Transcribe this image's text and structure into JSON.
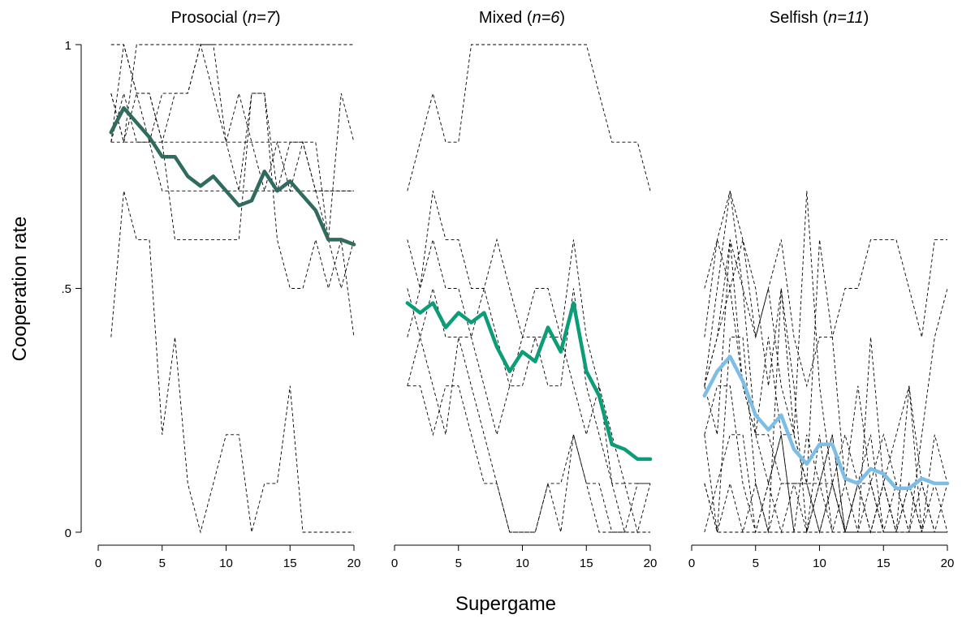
{
  "chart_data": {
    "type": "line",
    "xlabel": "Supergame",
    "ylabel": "Cooperation rate",
    "x": [
      1,
      2,
      3,
      4,
      5,
      6,
      7,
      8,
      9,
      10,
      11,
      12,
      13,
      14,
      15,
      16,
      17,
      18,
      19,
      20
    ],
    "xlim": [
      0,
      20
    ],
    "ylim": [
      0,
      1
    ],
    "xticks": [
      0,
      5,
      10,
      15,
      20
    ],
    "xtick_labels": [
      "0",
      "5",
      "10",
      "15",
      "20"
    ],
    "yticks": [
      0,
      0.5,
      1
    ],
    "ytick_labels": [
      "0",
      ".5",
      "1"
    ],
    "grid": false,
    "legend": "none",
    "panels": [
      {
        "title_main": "Prosocial (",
        "title_n": "n=7",
        "title_end": ")",
        "mean_color": "#2f6b5e",
        "mean": [
          0.82,
          0.87,
          0.84,
          0.81,
          0.77,
          0.77,
          0.73,
          0.71,
          0.73,
          0.7,
          0.67,
          0.68,
          0.74,
          0.7,
          0.72,
          0.69,
          0.66,
          0.6,
          0.6,
          0.59
        ],
        "individuals": [
          [
            1.0,
            1.0,
            0.9,
            0.9,
            0.8,
            0.9,
            0.9,
            1.0,
            1.0,
            0.8,
            0.7,
            0.9,
            0.9,
            0.7,
            0.8,
            0.8,
            0.8,
            0.6,
            0.9,
            0.8
          ],
          [
            0.9,
            0.8,
            0.8,
            0.8,
            0.8,
            0.8,
            0.8,
            0.8,
            0.8,
            0.8,
            0.8,
            0.8,
            0.8,
            0.8,
            0.8,
            0.8,
            0.7,
            0.7,
            0.7,
            0.7
          ],
          [
            0.8,
            0.8,
            1.0,
            1.0,
            1.0,
            1.0,
            1.0,
            1.0,
            1.0,
            1.0,
            1.0,
            1.0,
            1.0,
            1.0,
            1.0,
            1.0,
            1.0,
            1.0,
            1.0,
            1.0
          ],
          [
            0.8,
            1.0,
            0.9,
            0.9,
            0.8,
            0.6,
            0.6,
            0.6,
            0.6,
            0.6,
            0.6,
            0.9,
            0.9,
            0.6,
            0.5,
            0.5,
            0.6,
            0.5,
            0.6,
            0.4
          ],
          [
            0.4,
            0.7,
            0.6,
            0.6,
            0.2,
            0.4,
            0.1,
            0.0,
            0.1,
            0.2,
            0.2,
            0.0,
            0.1,
            0.1,
            0.3,
            0.0,
            0.0,
            0.0,
            0.0,
            0.0
          ],
          [
            0.8,
            0.9,
            0.8,
            0.8,
            0.9,
            0.9,
            0.9,
            1.0,
            0.9,
            0.8,
            0.9,
            0.8,
            0.7,
            0.8,
            0.7,
            0.8,
            0.7,
            0.6,
            0.5,
            0.6
          ],
          [
            0.9,
            0.8,
            0.9,
            0.8,
            0.7,
            0.7,
            0.7,
            0.7,
            0.7,
            0.7,
            0.7,
            0.7,
            0.7,
            0.7,
            0.7,
            0.7,
            0.7,
            0.7,
            0.7,
            0.7
          ]
        ]
      },
      {
        "title_main": "Mixed (",
        "title_n": "n=6",
        "title_end": ")",
        "mean_color": "#0c9d78",
        "mean": [
          0.47,
          0.45,
          0.47,
          0.42,
          0.45,
          0.43,
          0.45,
          0.38,
          0.33,
          0.37,
          0.35,
          0.42,
          0.37,
          0.47,
          0.33,
          0.28,
          0.18,
          0.17,
          0.15,
          0.15
        ],
        "individuals": [
          [
            0.7,
            0.8,
            0.9,
            0.8,
            0.8,
            1.0,
            1.0,
            1.0,
            1.0,
            1.0,
            1.0,
            1.0,
            1.0,
            1.0,
            1.0,
            0.9,
            0.8,
            0.8,
            0.8,
            0.7
          ],
          [
            0.6,
            0.5,
            0.7,
            0.6,
            0.6,
            0.5,
            0.5,
            0.6,
            0.5,
            0.4,
            0.5,
            0.5,
            0.4,
            0.6,
            0.4,
            0.3,
            0.2,
            0.1,
            0.1,
            0.1
          ],
          [
            0.5,
            0.4,
            0.5,
            0.4,
            0.4,
            0.4,
            0.3,
            0.2,
            0.3,
            0.3,
            0.4,
            0.3,
            0.3,
            0.5,
            0.3,
            0.2,
            0.1,
            0.1,
            0.0,
            0.1
          ],
          [
            0.4,
            0.5,
            0.6,
            0.5,
            0.5,
            0.4,
            0.5,
            0.4,
            0.3,
            0.4,
            0.4,
            0.4,
            0.4,
            0.3,
            0.2,
            0.3,
            0.1,
            0.0,
            0.0,
            0.0
          ],
          [
            0.3,
            0.3,
            0.2,
            0.3,
            0.3,
            0.2,
            0.1,
            0.1,
            0.0,
            0.0,
            0.0,
            0.1,
            0.1,
            0.2,
            0.1,
            0.0,
            0.0,
            0.0,
            0.0,
            0.0
          ],
          [
            0.3,
            0.4,
            0.3,
            0.2,
            0.4,
            0.3,
            0.2,
            0.1,
            0.0,
            0.0,
            0.0,
            0.1,
            0.0,
            0.2,
            0.1,
            0.1,
            0.0,
            0.0,
            0.1,
            0.1
          ]
        ]
      },
      {
        "title_main": "Selfish (",
        "title_n": "n=11",
        "title_end": ")",
        "mean_color": "#7dbde6",
        "mean": [
          0.28,
          0.33,
          0.36,
          0.31,
          0.24,
          0.21,
          0.24,
          0.17,
          0.14,
          0.18,
          0.18,
          0.11,
          0.1,
          0.13,
          0.12,
          0.09,
          0.09,
          0.11,
          0.1,
          0.1
        ],
        "individuals": [
          [
            0.4,
            0.6,
            0.7,
            0.5,
            0.4,
            0.5,
            0.6,
            0.4,
            0.3,
            0.4,
            0.4,
            0.5,
            0.5,
            0.6,
            0.6,
            0.6,
            0.5,
            0.4,
            0.6,
            0.6
          ],
          [
            0.3,
            0.5,
            0.7,
            0.6,
            0.5,
            0.3,
            0.5,
            0.2,
            0.1,
            0.6,
            0.4,
            0.1,
            0.3,
            0.1,
            0.2,
            0.1,
            0.0,
            0.2,
            0.4,
            0.5
          ],
          [
            0.3,
            0.4,
            0.5,
            0.6,
            0.4,
            0.5,
            0.3,
            0.2,
            0.7,
            0.3,
            0.1,
            0.2,
            0.1,
            0.0,
            0.1,
            0.0,
            0.3,
            0.1,
            0.0,
            0.0
          ],
          [
            0.3,
            0.2,
            0.6,
            0.5,
            0.2,
            0.4,
            0.2,
            0.0,
            0.2,
            0.1,
            0.2,
            0.0,
            0.1,
            0.2,
            0.0,
            0.1,
            0.0,
            0.0,
            0.1,
            0.0
          ],
          [
            0.2,
            0.0,
            0.4,
            0.4,
            0.1,
            0.0,
            0.5,
            0.3,
            0.0,
            0.2,
            0.0,
            0.1,
            0.0,
            0.4,
            0.1,
            0.2,
            0.3,
            0.0,
            0.2,
            0.1
          ],
          [
            0.0,
            0.1,
            0.2,
            0.2,
            0.0,
            0.1,
            0.0,
            0.1,
            0.1,
            0.0,
            0.1,
            0.0,
            0.0,
            0.0,
            0.1,
            0.0,
            0.0,
            0.0,
            0.0,
            0.0
          ],
          [
            0.1,
            0.0,
            0.1,
            0.0,
            0.1,
            0.0,
            0.1,
            0.1,
            0.0,
            0.1,
            0.0,
            0.0,
            0.1,
            0.1,
            0.0,
            0.0,
            0.1,
            0.0,
            0.0,
            0.0
          ],
          [
            0.2,
            0.3,
            0.3,
            0.1,
            0.0,
            0.1,
            0.2,
            0.0,
            0.0,
            0.1,
            0.2,
            0.0,
            0.1,
            0.0,
            0.1,
            0.0,
            0.0,
            0.1,
            0.0,
            0.0
          ],
          [
            0.5,
            0.6,
            0.5,
            0.3,
            0.2,
            0.2,
            0.1,
            0.1,
            0.1,
            0.0,
            0.1,
            0.0,
            0.0,
            0.1,
            0.0,
            0.0,
            0.1,
            0.0,
            0.0,
            0.1
          ],
          [
            0.1,
            0.0,
            0.0,
            0.0,
            0.0,
            0.0,
            0.0,
            0.0,
            0.0,
            0.0,
            0.0,
            0.0,
            0.0,
            0.0,
            0.0,
            0.0,
            0.0,
            0.0,
            0.0,
            0.0
          ],
          [
            0.3,
            0.4,
            0.6,
            0.3,
            0.2,
            0.1,
            0.2,
            0.2,
            0.1,
            0.1,
            0.1,
            0.0,
            0.0,
            0.0,
            0.0,
            0.0,
            0.0,
            0.0,
            0.0,
            0.0
          ]
        ]
      }
    ]
  }
}
